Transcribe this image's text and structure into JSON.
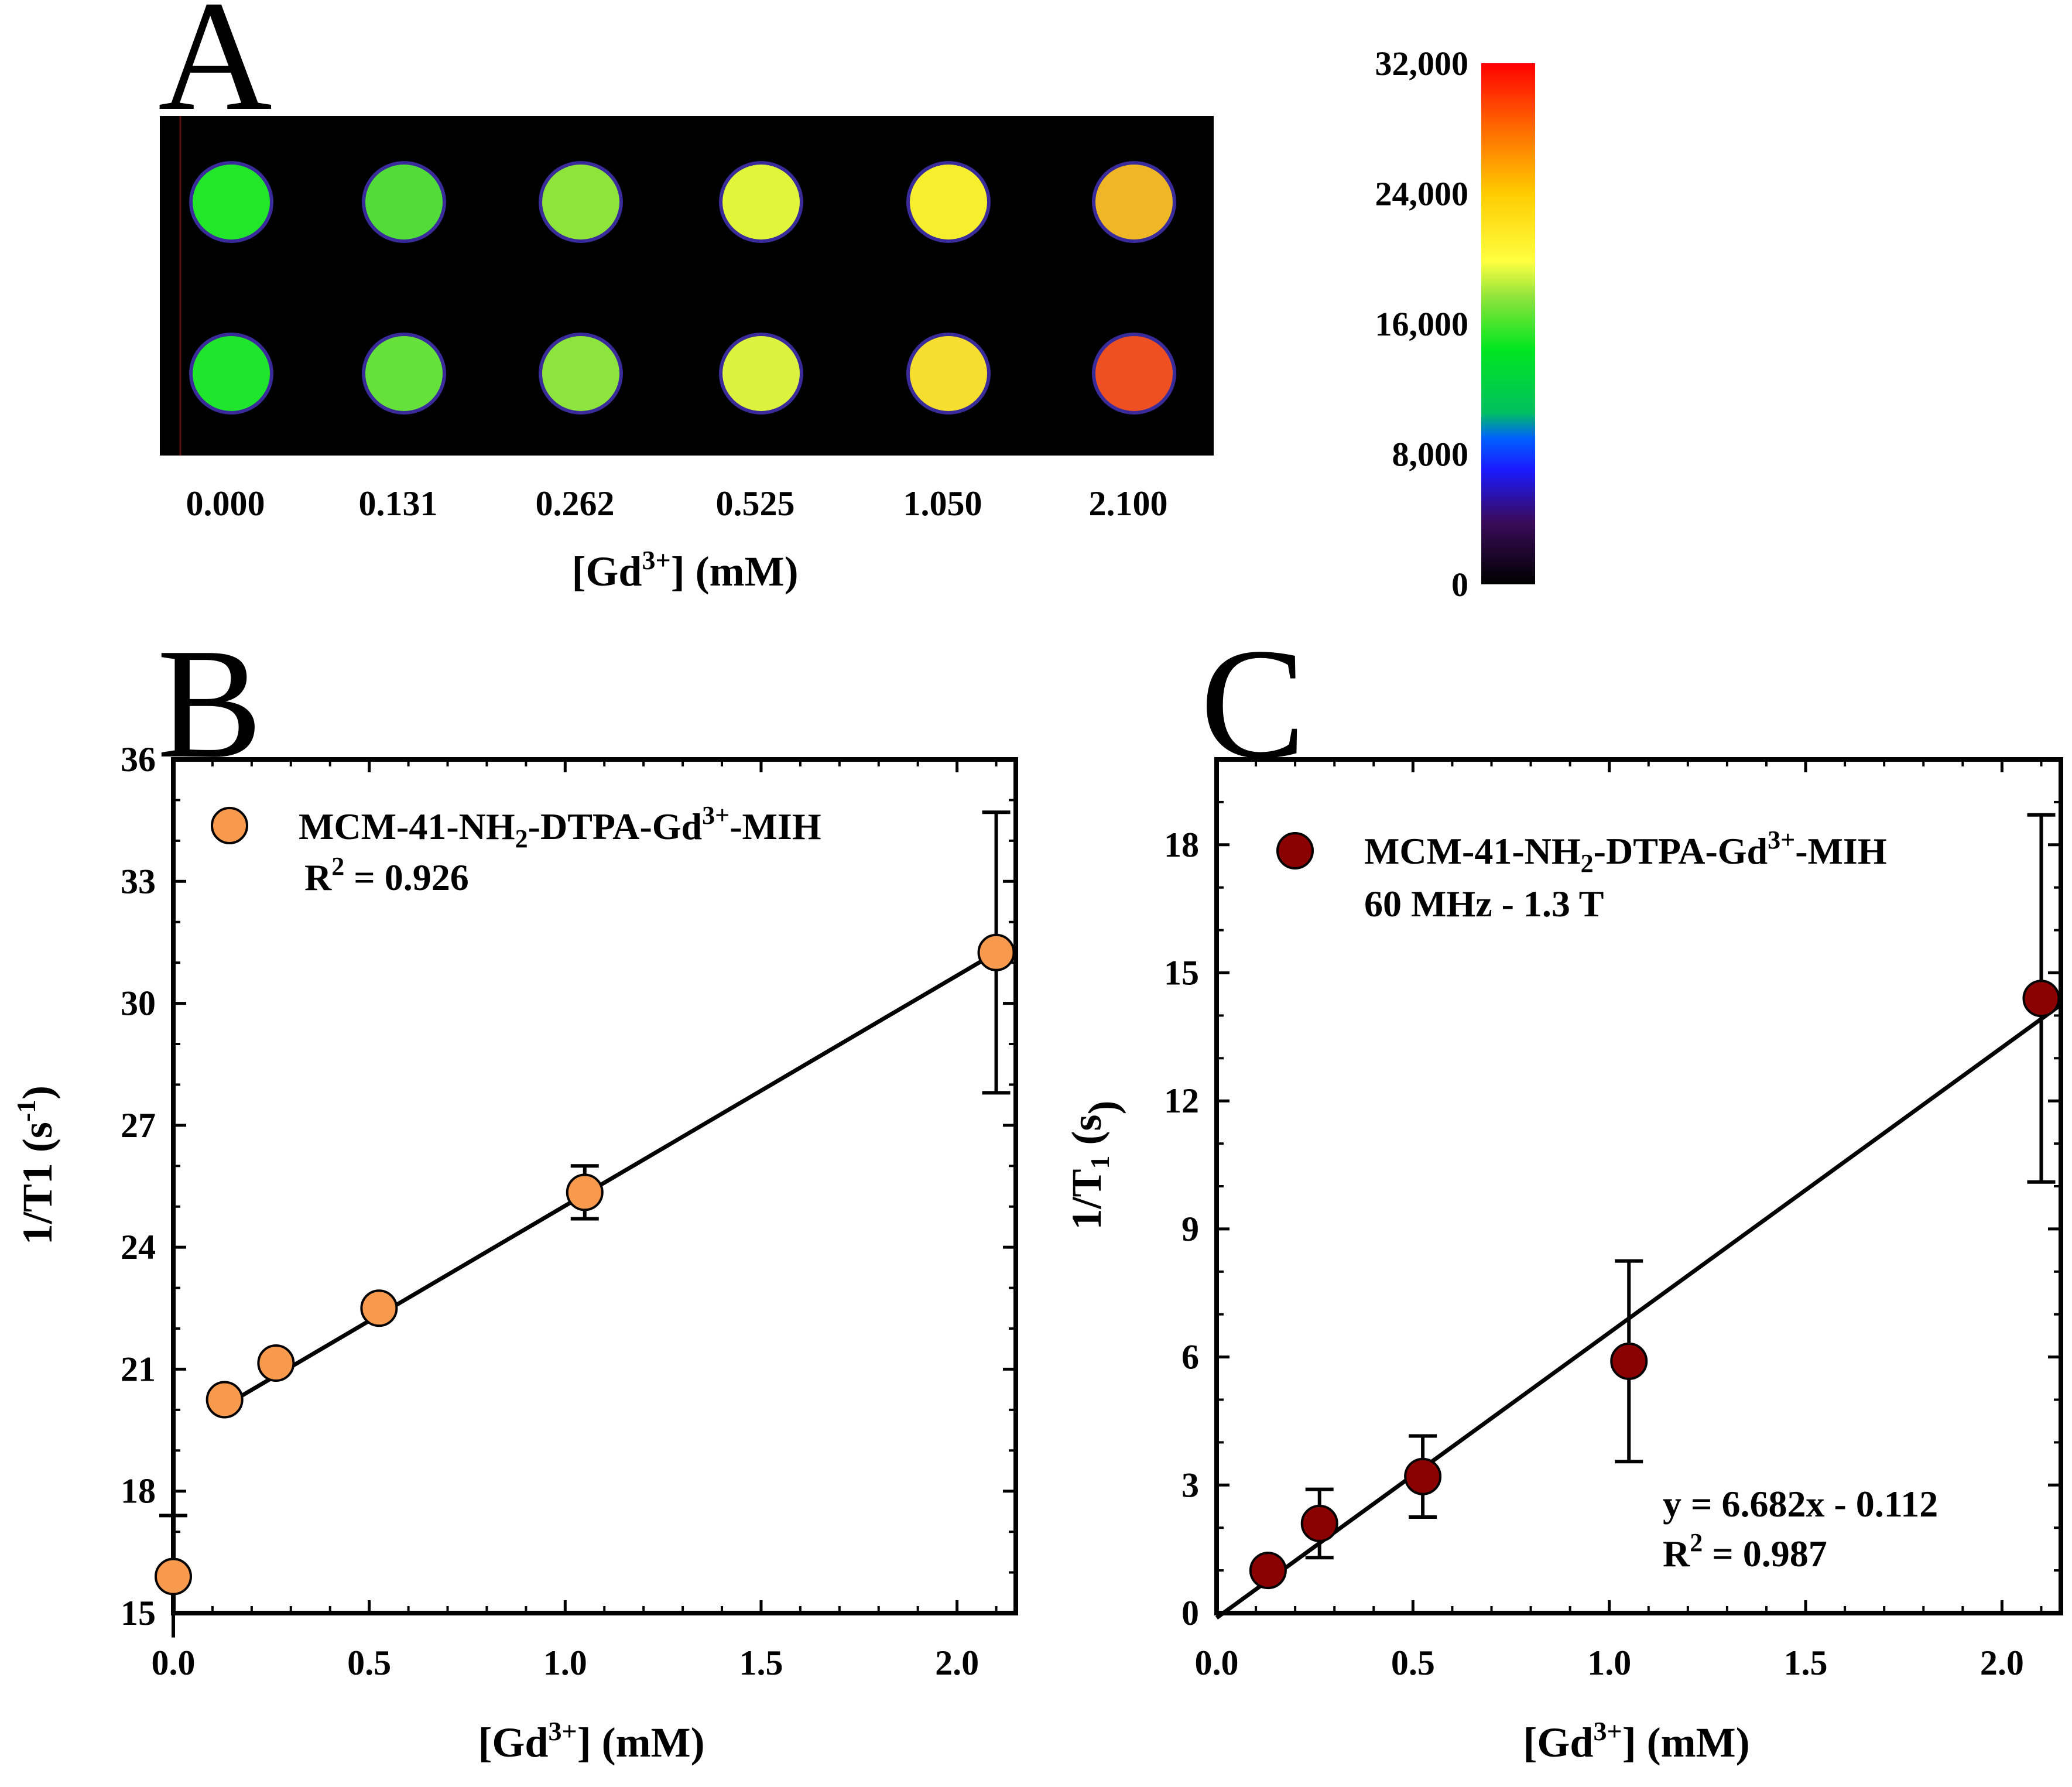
{
  "panels": {
    "A": {
      "letter": "A",
      "concentrations": [
        "0.000",
        "0.131",
        "0.262",
        "0.525",
        "1.050",
        "2.100"
      ],
      "xlabel_main": "[Gd",
      "xlabel_sup": "3+",
      "xlabel_tail": "] (mM)",
      "well_colors": {
        "row1": [
          "#22e62a",
          "#52dc3a",
          "#8ee43a",
          "#e1f53a",
          "#f7ef2e",
          "#efb726"
        ],
        "row2": [
          "#1fe62c",
          "#66e03a",
          "#8ce43c",
          "#dcf23e",
          "#f6de30",
          "#ef5022"
        ]
      },
      "colorbar": {
        "ticks": [
          "32,000",
          "24,000",
          "16,000",
          "8,000",
          "0"
        ],
        "range": [
          0,
          32000
        ]
      }
    },
    "B": {
      "letter": "B"
    },
    "C": {
      "letter": "C"
    }
  },
  "chart_data": [
    {
      "type": "scatter",
      "panel": "B",
      "series": [
        {
          "name": "MCM-41-NH2-DTPA-Gd3+-MIH",
          "color": "#f79a4d",
          "x": [
            0.0,
            0.131,
            0.262,
            0.525,
            1.05,
            2.1
          ],
          "y": [
            15.9,
            20.25,
            21.15,
            22.5,
            25.35,
            31.25
          ],
          "err": [
            1.5,
            0.0,
            0.0,
            0.0,
            0.65,
            3.45
          ]
        }
      ],
      "fit_line": {
        "x": [
          0.131,
          2.1
        ],
        "y": [
          20.1,
          31.25
        ]
      },
      "legend_name_main": "MCM-41-NH",
      "legend_name_sub1": "2",
      "legend_name_mid": "-DTPA-Gd",
      "legend_name_sup": "3+",
      "legend_name_tail": "-MIH",
      "r2_label": "R",
      "r2_sup": "2",
      "r2_value": " = 0.926",
      "xlabel_main": "[Gd",
      "xlabel_sup": "3+",
      "xlabel_tail": "] (mM)",
      "ylabel_main": "1/T1 (s",
      "ylabel_sup": "-1",
      "ylabel_tail": ")",
      "xlim": [
        0,
        2.15
      ],
      "ylim": [
        15,
        36
      ],
      "xticks": [
        "0.0",
        "0.5",
        "1.0",
        "1.5",
        "2.0"
      ],
      "xtick_values": [
        0,
        0.5,
        1.0,
        1.5,
        2.0
      ],
      "yticks": [
        "15",
        "18",
        "21",
        "24",
        "27",
        "30",
        "33",
        "36"
      ],
      "ytick_values": [
        15,
        18,
        21,
        24,
        27,
        30,
        33,
        36
      ],
      "grid": false,
      "legend_position": "top-left"
    },
    {
      "type": "scatter",
      "panel": "C",
      "series": [
        {
          "name": "MCM-41-NH2-DTPA-Gd3+-MIH",
          "color": "#8b0000",
          "x": [
            0.131,
            0.262,
            0.525,
            1.05,
            2.1
          ],
          "y": [
            1.0,
            2.1,
            3.2,
            5.9,
            14.4
          ],
          "err": [
            0.0,
            0.8,
            0.95,
            2.35,
            4.3
          ]
        }
      ],
      "fit_line": {
        "x": [
          0.0,
          2.15
        ],
        "y": [
          -0.112,
          14.254
        ]
      },
      "legend_name_main": "MCM-41-NH",
      "legend_name_sub1": "2",
      "legend_name_mid": "-DTPA-Gd",
      "legend_name_sup": "3+",
      "legend_name_tail": "-MIH",
      "legend_sub_label": "60 MHz - 1.3 T",
      "equation": "y =  6.682x - 0.112",
      "r2_label": "R",
      "r2_sup": "2",
      "r2_value": " = 0.987",
      "xlabel_main": "[Gd",
      "xlabel_sup": "3+",
      "xlabel_tail": "] (mM)",
      "ylabel_main": "1/T",
      "ylabel_sub": "1",
      "ylabel_mid": " (s",
      "ylabel_tail": ")",
      "xlim": [
        0,
        2.15
      ],
      "ylim": [
        0,
        20
      ],
      "xticks": [
        "0.0",
        "0.5",
        "1.0",
        "1.5",
        "2.0"
      ],
      "xtick_values": [
        0,
        0.5,
        1.0,
        1.5,
        2.0
      ],
      "yticks": [
        "0",
        "3",
        "6",
        "9",
        "12",
        "15",
        "18"
      ],
      "ytick_values": [
        0,
        3,
        6,
        9,
        12,
        15,
        18
      ],
      "grid": false,
      "legend_position": "top-left"
    }
  ]
}
